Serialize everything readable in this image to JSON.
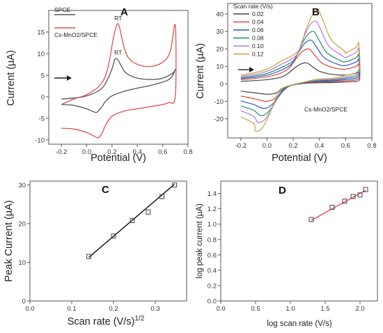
{
  "chart_data": [
    {
      "panel": "A",
      "type": "line",
      "xlabel": "Potential (V)",
      "ylabel": "Current (µA)",
      "xlim": [
        -0.3,
        0.8
      ],
      "ylim": [
        -11,
        20
      ],
      "xticks": [
        "-0.2",
        "0.0",
        "0.2",
        "0.4",
        "0.6",
        "0.8"
      ],
      "yticks": [
        "-10",
        "-5",
        "0",
        "5",
        "10",
        "15"
      ],
      "legend_position": "top-left",
      "annotations": [
        "RT",
        "RT"
      ],
      "series": [
        {
          "name": "SPCE",
          "color": "#555555",
          "x": [
            -0.2,
            -0.1,
            0.0,
            0.1,
            0.15,
            0.2,
            0.22,
            0.24,
            0.27,
            0.3,
            0.35,
            0.4,
            0.5,
            0.6,
            0.68,
            0.7,
            0.65,
            0.5,
            0.4,
            0.3,
            0.2,
            0.15,
            0.12,
            0.08,
            0.04,
            0.0,
            -0.1,
            -0.2
          ],
          "y": [
            -0.5,
            -0.3,
            0.2,
            1.5,
            3.2,
            6.5,
            8.5,
            8.8,
            7.3,
            5.8,
            4.8,
            4.3,
            4.0,
            4.3,
            5.5,
            6.3,
            4.0,
            2.6,
            2.0,
            1.3,
            0.2,
            -1.0,
            -2.3,
            -3.6,
            -3.3,
            -2.8,
            -2.0,
            -1.8
          ]
        },
        {
          "name": "Cs-MnO2/SPCE",
          "color": "#d9534f",
          "x": [
            -0.2,
            -0.1,
            0.0,
            0.1,
            0.15,
            0.18,
            0.21,
            0.24,
            0.26,
            0.29,
            0.33,
            0.4,
            0.5,
            0.6,
            0.66,
            0.7,
            0.7,
            0.65,
            0.6,
            0.5,
            0.4,
            0.3,
            0.2,
            0.15,
            0.12,
            0.09,
            0.05,
            0.0,
            -0.1,
            -0.2
          ],
          "y": [
            -1.8,
            -0.5,
            0.5,
            2.5,
            5.0,
            8.5,
            13.5,
            16.8,
            16.0,
            12.0,
            9.0,
            7.5,
            7.0,
            8.0,
            10.5,
            16.5,
            0.2,
            -1.3,
            -1.8,
            -2.3,
            -2.8,
            -3.3,
            -4.5,
            -6.5,
            -8.5,
            -9.5,
            -9.0,
            -8.3,
            -7.5,
            -7.3
          ]
        }
      ]
    },
    {
      "panel": "B",
      "type": "line",
      "xlabel": "Potential (V)",
      "ylabel": "Current (µA)",
      "xlim": [
        -0.3,
        0.8
      ],
      "ylim": [
        -31,
        46
      ],
      "xticks": [
        "-0.2",
        "0.0",
        "0.2",
        "0.4",
        "0.6",
        "0.8"
      ],
      "yticks": [
        "-20",
        "-10",
        "0",
        "10",
        "20",
        "30",
        "40"
      ],
      "legend_title": "Scan rate (V/s)",
      "legend_position": "top-left",
      "annotations": [
        "Cs-MnO2/SPCE"
      ],
      "series": [
        {
          "name": "0.02",
          "color": "#444444",
          "peak_anodic": 12,
          "peak_cathodic": -6
        },
        {
          "name": "0.04",
          "color": "#e0413a",
          "peak_anodic": 20,
          "peak_cathodic": -10
        },
        {
          "name": "0.06",
          "color": "#2d56c8",
          "peak_anodic": 25,
          "peak_cathodic": -14
        },
        {
          "name": "0.08",
          "color": "#1f8a70",
          "peak_anodic": 30,
          "peak_cathodic": -18
        },
        {
          "name": "0.10",
          "color": "#b877d6",
          "peak_anodic": 36,
          "peak_cathodic": -22
        },
        {
          "name": "0.12",
          "color": "#c7a23a",
          "peak_anodic": 42,
          "peak_cathodic": -27
        }
      ]
    },
    {
      "panel": "C",
      "type": "scatter",
      "xlabel": "Scan rate (V/s)",
      "xlabel_sup": "1/2",
      "ylabel": "Peak Current (µA)",
      "xlim": [
        0.0,
        0.375
      ],
      "ylim": [
        0,
        31
      ],
      "xticks": [
        "0.0",
        "0.1",
        "0.2",
        "0.3"
      ],
      "yticks": [
        "0",
        "10",
        "20",
        "30"
      ],
      "x": [
        0.141,
        0.2,
        0.245,
        0.283,
        0.316,
        0.346
      ],
      "y": [
        11.5,
        16.8,
        20.8,
        23.0,
        27.0,
        30.0
      ],
      "fit_line": [
        [
          0.141,
          11.3
        ],
        [
          0.346,
          30.2
        ]
      ],
      "marker_color": "#444444",
      "fit_color": "#111111"
    },
    {
      "panel": "D",
      "type": "scatter",
      "xlabel": "log scan rate (V/s)",
      "ylabel": "log peak current (µA)",
      "xlim": [
        0.0,
        2.25
      ],
      "ylim": [
        0.0,
        1.56
      ],
      "xticks": [
        "0.0",
        "0.5",
        "1.0",
        "1.5",
        "2.0"
      ],
      "yticks": [
        "0.0",
        "0.2",
        "0.4",
        "0.6",
        "0.8",
        "1.0",
        "1.2",
        "1.4"
      ],
      "x": [
        1.3,
        1.6,
        1.78,
        1.9,
        2.0,
        2.08
      ],
      "y": [
        1.06,
        1.22,
        1.3,
        1.36,
        1.38,
        1.45
      ],
      "fit_line": [
        [
          1.3,
          1.05
        ],
        [
          2.08,
          1.44
        ]
      ],
      "marker_color": "#444444",
      "fit_color": "#d9534f"
    }
  ]
}
